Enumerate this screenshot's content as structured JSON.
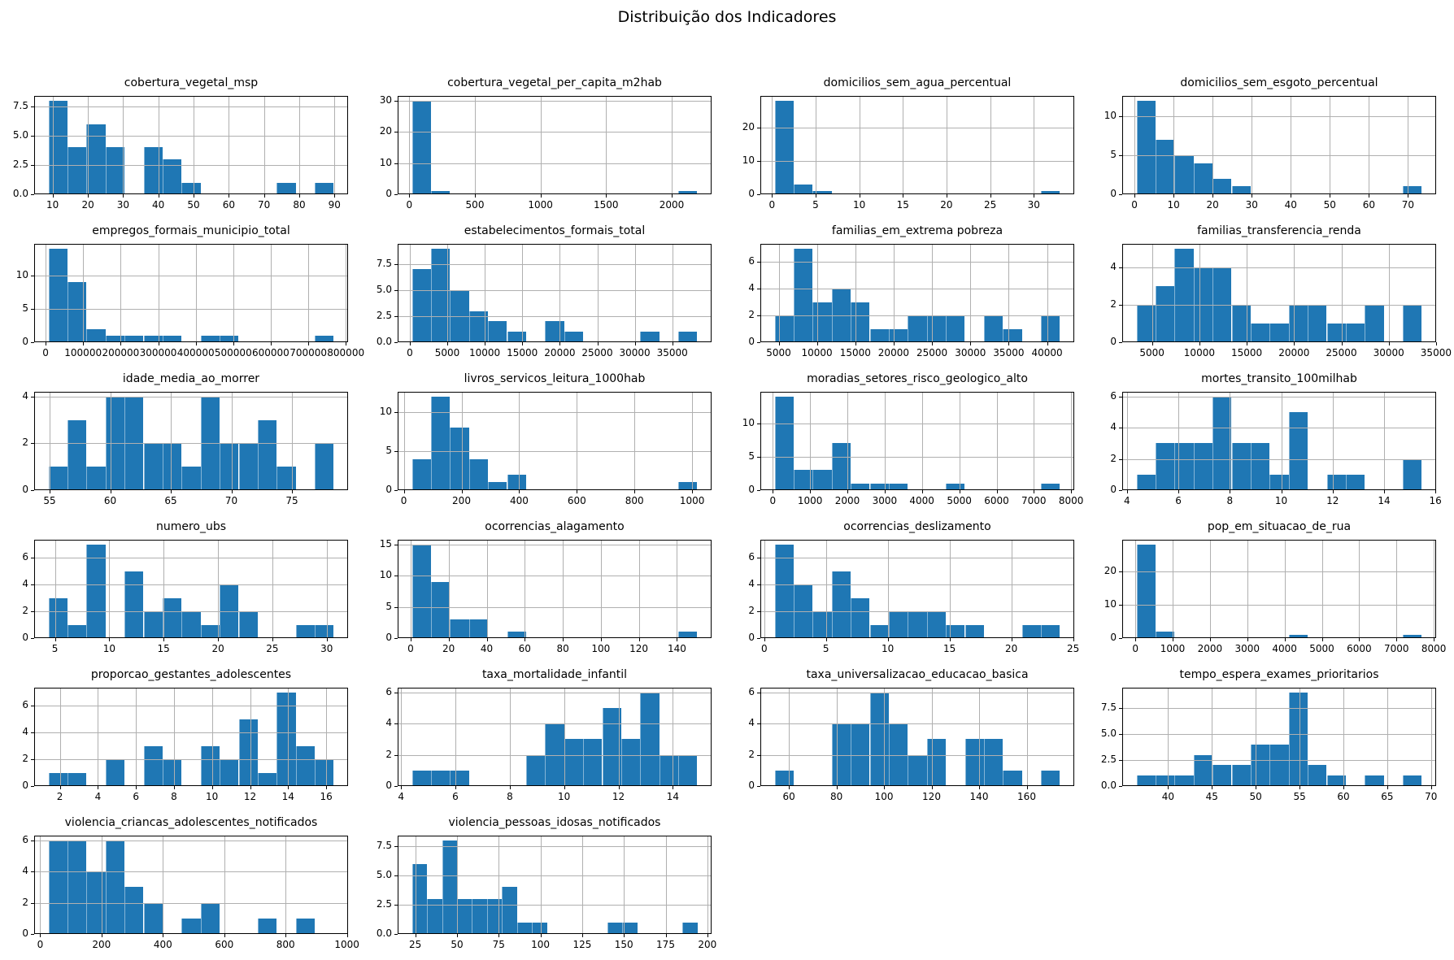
{
  "figure": {
    "title": "Distribuição dos Indicadores",
    "layout": "6 rows x 4 cols",
    "grid": true,
    "bar_color": "#1f77b4",
    "grid_color": "#b0b0b0",
    "axis_color": "#000000",
    "background": "#ffffff"
  },
  "chart_data": [
    {
      "type": "histogram",
      "title": "cobertura_vegetal_msp",
      "bin_start": 8.8,
      "bin_width": 5.4,
      "heights": [
        8,
        4,
        6,
        4,
        0,
        4,
        3,
        1,
        0,
        0,
        0,
        0,
        1,
        0,
        1
      ],
      "xticks": [
        10,
        20,
        30,
        40,
        50,
        60,
        70,
        80,
        90
      ],
      "xtick_labels": [
        "10",
        "20",
        "30",
        "40",
        "50",
        "60",
        "70",
        "80",
        "90"
      ],
      "yticks": [
        0,
        2.5,
        5,
        7.5
      ],
      "ytick_labels": [
        "0.0",
        "2.5",
        "5.0",
        "7.5"
      ]
    },
    {
      "type": "histogram",
      "title": "cobertura_vegetal_per_capita_m2hab",
      "bin_start": 20,
      "bin_width": 145,
      "heights": [
        30,
        1,
        0,
        0,
        0,
        0,
        0,
        0,
        0,
        0,
        0,
        0,
        0,
        0,
        1
      ],
      "xticks": [
        0,
        500,
        1000,
        1500,
        2000
      ],
      "xtick_labels": [
        "0",
        "500",
        "1000",
        "1500",
        "2000"
      ],
      "yticks": [
        0,
        10,
        20,
        30
      ],
      "ytick_labels": [
        "0",
        "10",
        "20",
        "30"
      ]
    },
    {
      "type": "histogram",
      "title": "domicilios_sem_agua_percentual",
      "bin_start": 0.3,
      "bin_width": 2.18,
      "heights": [
        28,
        3,
        1,
        0,
        0,
        0,
        0,
        0,
        0,
        0,
        0,
        0,
        0,
        0,
        1
      ],
      "xticks": [
        0,
        5,
        10,
        15,
        20,
        25,
        30
      ],
      "xtick_labels": [
        "0",
        "5",
        "10",
        "15",
        "20",
        "25",
        "30"
      ],
      "yticks": [
        0,
        10,
        20
      ],
      "ytick_labels": [
        "0",
        "10",
        "20"
      ]
    },
    {
      "type": "histogram",
      "title": "domicilios_sem_esgoto_percentual",
      "bin_start": 0.5,
      "bin_width": 4.87,
      "heights": [
        12,
        7,
        5,
        4,
        2,
        1,
        0,
        0,
        0,
        0,
        0,
        0,
        0,
        0,
        1
      ],
      "xticks": [
        0,
        10,
        20,
        30,
        40,
        50,
        60,
        70
      ],
      "xtick_labels": [
        "0",
        "10",
        "20",
        "30",
        "40",
        "50",
        "60",
        "70"
      ],
      "yticks": [
        0,
        5,
        10
      ],
      "ytick_labels": [
        "0",
        "5",
        "10"
      ]
    },
    {
      "type": "histogram",
      "title": "empregos_formais_municipio_total",
      "bin_start": 7500,
      "bin_width": 50700,
      "heights": [
        14,
        9,
        2,
        1,
        1,
        1,
        1,
        0,
        1,
        1,
        0,
        0,
        0,
        0,
        1
      ],
      "xticks": [
        0,
        100000,
        200000,
        300000,
        400000,
        500000,
        600000,
        700000,
        800000
      ],
      "xtick_labels": [
        "0",
        "100000",
        "200000",
        "300000",
        "400000",
        "500000",
        "600000",
        "700000",
        "800000"
      ],
      "yticks": [
        0,
        5,
        10
      ],
      "ytick_labels": [
        "0",
        "5",
        "10"
      ]
    },
    {
      "type": "histogram",
      "title": "estabelecimentos_formais_total",
      "bin_start": 290,
      "bin_width": 2536,
      "heights": [
        7,
        9,
        5,
        3,
        2,
        1,
        0,
        2,
        1,
        0,
        0,
        0,
        1,
        0,
        1
      ],
      "xticks": [
        0,
        5000,
        10000,
        15000,
        20000,
        25000,
        30000,
        35000
      ],
      "xtick_labels": [
        "0",
        "5000",
        "10000",
        "15000",
        "20000",
        "25000",
        "30000",
        "35000"
      ],
      "yticks": [
        0,
        2.5,
        5,
        7.5
      ],
      "ytick_labels": [
        "0.0",
        "2.5",
        "5.0",
        "7.5"
      ]
    },
    {
      "type": "histogram",
      "title": "familias_em_extrema pobreza",
      "bin_start": 4480,
      "bin_width": 2480,
      "heights": [
        2,
        7,
        3,
        4,
        3,
        1,
        1,
        2,
        2,
        2,
        0,
        2,
        1,
        0,
        2
      ],
      "xticks": [
        5000,
        10000,
        15000,
        20000,
        25000,
        30000,
        35000,
        40000
      ],
      "xtick_labels": [
        "5000",
        "10000",
        "15000",
        "20000",
        "25000",
        "30000",
        "35000",
        "40000"
      ],
      "yticks": [
        0,
        2,
        4,
        6
      ],
      "ytick_labels": [
        "0",
        "2",
        "4",
        "6"
      ]
    },
    {
      "type": "histogram",
      "title": "familias_transferencia_renda",
      "bin_start": 3350,
      "bin_width": 2010,
      "heights": [
        2,
        3,
        5,
        4,
        4,
        2,
        1,
        1,
        2,
        2,
        1,
        1,
        2,
        0,
        2
      ],
      "xticks": [
        5000,
        10000,
        15000,
        20000,
        25000,
        30000,
        35000
      ],
      "xtick_labels": [
        "5000",
        "10000",
        "15000",
        "20000",
        "25000",
        "30000",
        "35000"
      ],
      "yticks": [
        0,
        2,
        4
      ],
      "ytick_labels": [
        "0",
        "2",
        "4"
      ]
    },
    {
      "type": "histogram",
      "title": "idade_media_ao_morrer",
      "bin_start": 54.9,
      "bin_width": 1.57,
      "heights": [
        1,
        3,
        1,
        4,
        4,
        2,
        2,
        1,
        4,
        2,
        2,
        3,
        1,
        0,
        2
      ],
      "xticks": [
        55,
        60,
        65,
        70,
        75
      ],
      "xtick_labels": [
        "55",
        "60",
        "65",
        "70",
        "75"
      ],
      "yticks": [
        0,
        2,
        4
      ],
      "ytick_labels": [
        "0",
        "2",
        "4"
      ]
    },
    {
      "type": "histogram",
      "title": "livros_servicos_leitura_1000hab",
      "bin_start": 28,
      "bin_width": 66,
      "heights": [
        4,
        12,
        8,
        4,
        1,
        2,
        0,
        0,
        0,
        0,
        0,
        0,
        0,
        0,
        1
      ],
      "xticks": [
        0,
        200,
        400,
        600,
        800,
        1000
      ],
      "xtick_labels": [
        "0",
        "200",
        "400",
        "600",
        "800",
        "1000"
      ],
      "yticks": [
        0,
        5,
        10
      ],
      "ytick_labels": [
        "0",
        "5",
        "10"
      ]
    },
    {
      "type": "histogram",
      "title": "moradias_setores_risco_geologico_alto",
      "bin_start": 50,
      "bin_width": 510,
      "heights": [
        14,
        3,
        3,
        7,
        1,
        1,
        1,
        0,
        0,
        1,
        0,
        0,
        0,
        0,
        1
      ],
      "xticks": [
        0,
        1000,
        2000,
        3000,
        4000,
        5000,
        6000,
        7000,
        8000
      ],
      "xtick_labels": [
        "0",
        "1000",
        "2000",
        "3000",
        "4000",
        "5000",
        "6000",
        "7000",
        "8000"
      ],
      "yticks": [
        0,
        5,
        10
      ],
      "ytick_labels": [
        "0",
        "5",
        "10"
      ]
    },
    {
      "type": "histogram",
      "title": "mortes_transito_100milhab",
      "bin_start": 4.37,
      "bin_width": 0.74,
      "heights": [
        1,
        3,
        3,
        3,
        6,
        3,
        3,
        1,
        5,
        0,
        1,
        1,
        0,
        0,
        2
      ],
      "xticks": [
        4,
        6,
        8,
        10,
        12,
        14,
        16
      ],
      "xtick_labels": [
        "4",
        "6",
        "8",
        "10",
        "12",
        "14",
        "16"
      ],
      "yticks": [
        0,
        2,
        4,
        6
      ],
      "ytick_labels": [
        "0",
        "2",
        "4",
        "6"
      ]
    },
    {
      "type": "histogram",
      "title": "numero_ubs",
      "bin_start": 4.4,
      "bin_width": 1.75,
      "heights": [
        3,
        1,
        7,
        0,
        5,
        2,
        3,
        2,
        1,
        4,
        2,
        0,
        0,
        1,
        1
      ],
      "xticks": [
        5,
        10,
        15,
        20,
        25,
        30
      ],
      "xtick_labels": [
        "5",
        "10",
        "15",
        "20",
        "25",
        "30"
      ],
      "yticks": [
        0,
        2,
        4,
        6
      ],
      "ytick_labels": [
        "0",
        "2",
        "4",
        "6"
      ]
    },
    {
      "type": "histogram",
      "title": "ocorrencias_alagamento",
      "bin_start": 0.7,
      "bin_width": 10,
      "heights": [
        15,
        9,
        3,
        3,
        0,
        1,
        0,
        0,
        0,
        0,
        0,
        0,
        0,
        0,
        1
      ],
      "xticks": [
        0,
        20,
        40,
        60,
        80,
        100,
        120,
        140
      ],
      "xtick_labels": [
        "0",
        "20",
        "40",
        "60",
        "80",
        "100",
        "120",
        "140"
      ],
      "yticks": [
        0,
        5,
        10,
        15
      ],
      "ytick_labels": [
        "0",
        "5",
        "10",
        "15"
      ]
    },
    {
      "type": "histogram",
      "title": "ocorrencias_deslizamento",
      "bin_start": 0.84,
      "bin_width": 1.54,
      "heights": [
        7,
        4,
        2,
        5,
        3,
        1,
        2,
        2,
        2,
        1,
        1,
        0,
        0,
        1,
        1
      ],
      "xticks": [
        0,
        5,
        10,
        15,
        20,
        25
      ],
      "xtick_labels": [
        "0",
        "5",
        "10",
        "15",
        "20",
        "25"
      ],
      "yticks": [
        0,
        2,
        4,
        6
      ],
      "ytick_labels": [
        "0",
        "2",
        "4",
        "6"
      ]
    },
    {
      "type": "histogram",
      "title": "pop_em_situacao_de_rua",
      "bin_start": 30,
      "bin_width": 510,
      "heights": [
        28,
        2,
        0,
        0,
        0,
        0,
        0,
        0,
        1,
        0,
        0,
        0,
        0,
        0,
        1
      ],
      "xticks": [
        0,
        1000,
        2000,
        3000,
        4000,
        5000,
        6000,
        7000,
        8000
      ],
      "xtick_labels": [
        "0",
        "1000",
        "2000",
        "3000",
        "4000",
        "5000",
        "6000",
        "7000",
        "8000"
      ],
      "yticks": [
        0,
        10,
        20
      ],
      "ytick_labels": [
        "0",
        "10",
        "20"
      ]
    },
    {
      "type": "histogram",
      "title": "proporcao_gestantes_adolescentes",
      "bin_start": 1.4,
      "bin_width": 1.0,
      "heights": [
        1,
        1,
        0,
        2,
        0,
        3,
        2,
        0,
        3,
        2,
        5,
        1,
        7,
        3,
        2
      ],
      "xticks": [
        2,
        4,
        6,
        8,
        10,
        12,
        14,
        16
      ],
      "xtick_labels": [
        "2",
        "4",
        "6",
        "8",
        "10",
        "12",
        "14",
        "16"
      ],
      "yticks": [
        0,
        2,
        4,
        6
      ],
      "ytick_labels": [
        "0",
        "2",
        "4",
        "6"
      ]
    },
    {
      "type": "histogram",
      "title": "taxa_mortalidade_infantil",
      "bin_start": 4.4,
      "bin_width": 0.7,
      "heights": [
        1,
        1,
        1,
        0,
        0,
        0,
        2,
        4,
        3,
        3,
        5,
        3,
        6,
        2,
        2
      ],
      "xticks": [
        4,
        6,
        8,
        10,
        12,
        14
      ],
      "xtick_labels": [
        "4",
        "6",
        "8",
        "10",
        "12",
        "14"
      ],
      "yticks": [
        0,
        2,
        4,
        6
      ],
      "ytick_labels": [
        "0",
        "2",
        "4",
        "6"
      ]
    },
    {
      "type": "histogram",
      "title": "taxa_universalizacao_educacao_basica",
      "bin_start": 54,
      "bin_width": 8,
      "heights": [
        1,
        0,
        0,
        4,
        4,
        6,
        4,
        2,
        3,
        0,
        3,
        3,
        1,
        0,
        1
      ],
      "xticks": [
        60,
        80,
        100,
        120,
        140,
        160
      ],
      "xtick_labels": [
        "60",
        "80",
        "100",
        "120",
        "140",
        "160"
      ],
      "yticks": [
        0,
        2,
        4,
        6
      ],
      "ytick_labels": [
        "0",
        "2",
        "4",
        "6"
      ]
    },
    {
      "type": "histogram",
      "title": "tempo_espera_exames_prioritarios",
      "bin_start": 36.4,
      "bin_width": 2.17,
      "heights": [
        1,
        1,
        1,
        3,
        2,
        2,
        4,
        4,
        9,
        2,
        1,
        0,
        1,
        0,
        1
      ],
      "xticks": [
        40,
        45,
        50,
        55,
        60,
        65,
        70
      ],
      "xtick_labels": [
        "40",
        "45",
        "50",
        "55",
        "60",
        "65",
        "70"
      ],
      "yticks": [
        0,
        2.5,
        5,
        7.5
      ],
      "ytick_labels": [
        "0.0",
        "2.5",
        "5.0",
        "7.5"
      ]
    },
    {
      "type": "histogram",
      "title": "violencia_criancas_adolescentes_notificados",
      "bin_start": 27,
      "bin_width": 62,
      "heights": [
        6,
        6,
        4,
        6,
        3,
        2,
        0,
        1,
        2,
        0,
        0,
        1,
        0,
        1,
        0
      ],
      "xticks": [
        0,
        200,
        400,
        600,
        800,
        1000
      ],
      "xtick_labels": [
        "0",
        "200",
        "400",
        "600",
        "800",
        "1000"
      ],
      "yticks": [
        0,
        2,
        4,
        6
      ],
      "ytick_labels": [
        "0",
        "2",
        "4",
        "6"
      ]
    },
    {
      "type": "histogram",
      "title": "violencia_pessoas_idosas_notificados",
      "bin_start": 23,
      "bin_width": 9,
      "heights": [
        6,
        3,
        8,
        3,
        3,
        3,
        4,
        1,
        1,
        0,
        0,
        0,
        0,
        1,
        1,
        0,
        0,
        0,
        1
      ],
      "xticks": [
        25,
        50,
        75,
        100,
        125,
        150,
        175,
        200
      ],
      "xtick_labels": [
        "25",
        "50",
        "75",
        "100",
        "125",
        "150",
        "175",
        "200"
      ],
      "yticks": [
        0,
        2.5,
        5,
        7.5
      ],
      "ytick_labels": [
        "0.0",
        "2.5",
        "5.0",
        "7.5"
      ]
    }
  ]
}
